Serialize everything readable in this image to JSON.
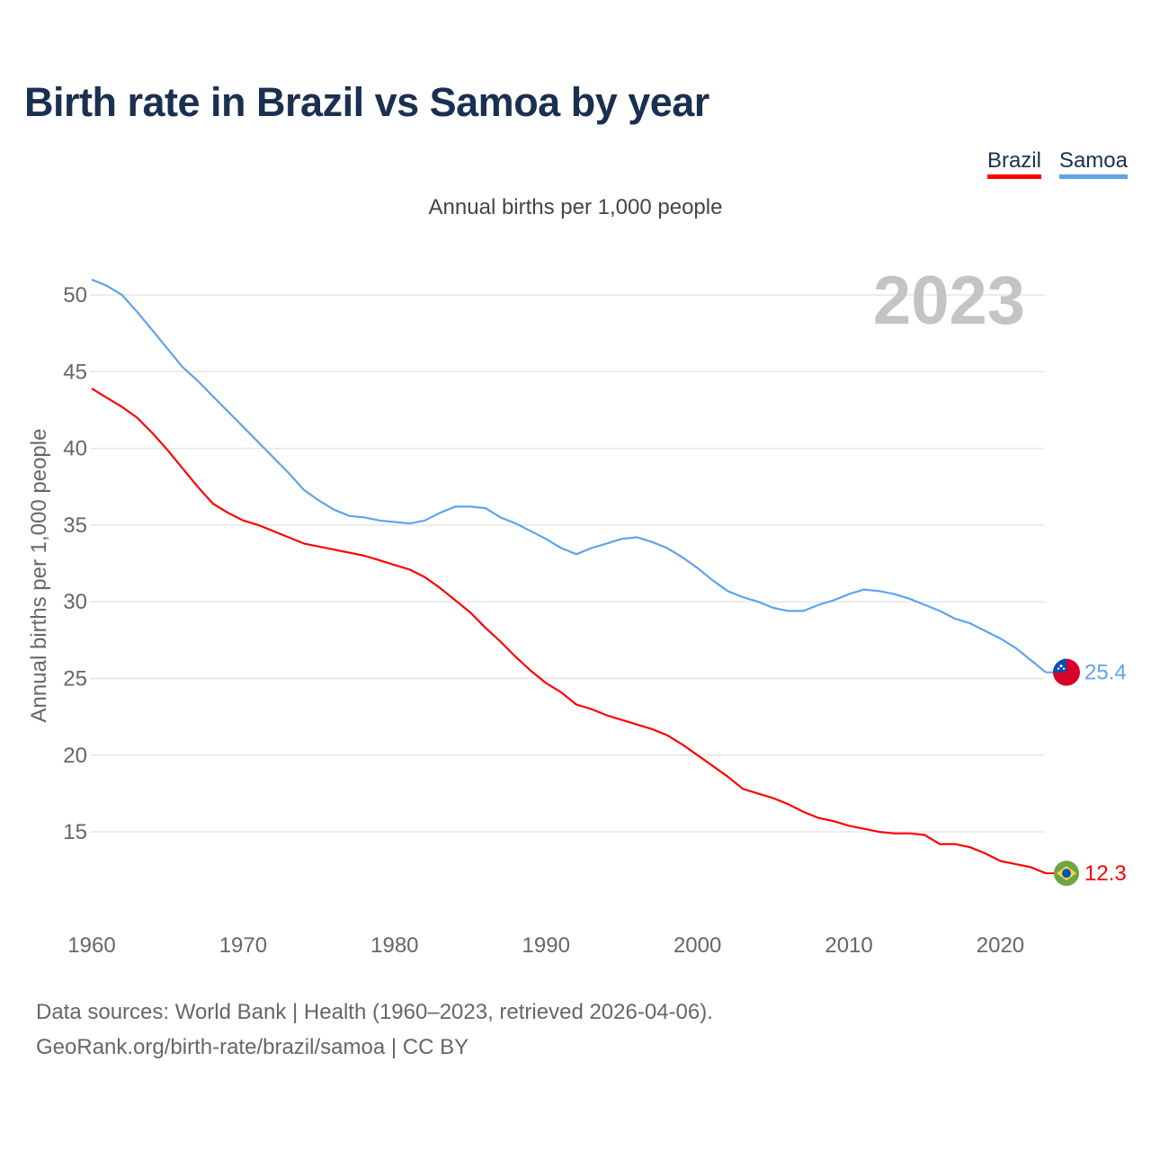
{
  "title": "Birth rate in Brazil vs Samoa by year",
  "subtitle": "Annual births per 1,000 people",
  "footer": {
    "line1": "Data sources: World Bank | Health (1960–2023, retrieved 2026-04-06).",
    "line2": "GeoRank.org/birth-rate/brazil/samoa | CC BY"
  },
  "chart_data": {
    "type": "line",
    "title": "Birth rate in Brazil vs Samoa by year",
    "xlabel": "",
    "ylabel": "Annual births per 1,000 people",
    "year_watermark": "2023",
    "xlim": [
      1960,
      2023
    ],
    "ylim": [
      10,
      51
    ],
    "xticks": [
      "1960",
      "1970",
      "1980",
      "1990",
      "2000",
      "2010",
      "2020"
    ],
    "yticks": [
      "15",
      "20",
      "25",
      "30",
      "35",
      "40",
      "45",
      "50"
    ],
    "grid": true,
    "legend_position": "top-right",
    "x": [
      1960,
      1961,
      1962,
      1963,
      1964,
      1965,
      1966,
      1967,
      1968,
      1969,
      1970,
      1971,
      1972,
      1973,
      1974,
      1975,
      1976,
      1977,
      1978,
      1979,
      1980,
      1981,
      1982,
      1983,
      1984,
      1985,
      1986,
      1987,
      1988,
      1989,
      1990,
      1991,
      1992,
      1993,
      1994,
      1995,
      1996,
      1997,
      1998,
      1999,
      2000,
      2001,
      2002,
      2003,
      2004,
      2005,
      2006,
      2007,
      2008,
      2009,
      2010,
      2011,
      2012,
      2013,
      2014,
      2015,
      2016,
      2017,
      2018,
      2019,
      2020,
      2021,
      2022,
      2023
    ],
    "series": [
      {
        "name": "Brazil",
        "color": "#ff0000",
        "end_label": "12.3",
        "flag": "brazil-flag",
        "values": [
          43.9,
          43.3,
          42.7,
          42.0,
          41.0,
          39.9,
          38.7,
          37.5,
          36.4,
          35.8,
          35.3,
          35.0,
          34.6,
          34.2,
          33.8,
          33.6,
          33.4,
          33.2,
          33.0,
          32.7,
          32.4,
          32.1,
          31.6,
          30.9,
          30.1,
          29.3,
          28.3,
          27.4,
          26.4,
          25.5,
          24.7,
          24.1,
          23.3,
          23.0,
          22.6,
          22.3,
          22.0,
          21.7,
          21.3,
          20.7,
          20.0,
          19.3,
          18.6,
          17.8,
          17.5,
          17.2,
          16.8,
          16.3,
          15.9,
          15.7,
          15.4,
          15.2,
          15.0,
          14.9,
          14.9,
          14.8,
          14.2,
          14.2,
          14.0,
          13.6,
          13.1,
          12.9,
          12.7,
          12.3
        ]
      },
      {
        "name": "Samoa",
        "color": "#5ea4ea",
        "end_label": "25.4",
        "flag": "samoa-flag",
        "values": [
          51.0,
          50.6,
          50.0,
          48.9,
          47.7,
          46.5,
          45.3,
          44.4,
          43.4,
          42.4,
          41.4,
          40.4,
          39.4,
          38.4,
          37.3,
          36.6,
          36.0,
          35.6,
          35.5,
          35.3,
          35.2,
          35.1,
          35.3,
          35.8,
          36.2,
          36.2,
          36.1,
          35.5,
          35.1,
          34.6,
          34.1,
          33.5,
          33.1,
          33.5,
          33.8,
          34.1,
          34.2,
          33.9,
          33.5,
          32.9,
          32.2,
          31.4,
          30.7,
          30.3,
          30.0,
          29.6,
          29.4,
          29.4,
          29.8,
          30.1,
          30.5,
          30.8,
          30.7,
          30.5,
          30.2,
          29.8,
          29.4,
          28.9,
          28.6,
          28.1,
          27.6,
          27.0,
          26.2,
          25.4
        ]
      }
    ]
  }
}
